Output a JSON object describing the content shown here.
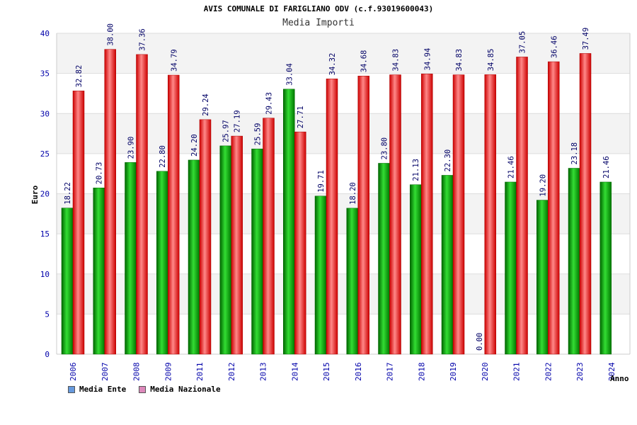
{
  "chart_data": {
    "type": "bar",
    "title": "AVIS COMUNALE DI FARIGLIANO ODV (c.f.93019600043)",
    "subtitle": "Media Importi",
    "xlabel": "Anno",
    "ylabel": "Euro",
    "ylim": [
      0,
      40
    ],
    "yticks": [
      0,
      5,
      10,
      15,
      20,
      25,
      30,
      35,
      40
    ],
    "grid": true,
    "legend_position": "bottom-left",
    "categories": [
      "2006",
      "2007",
      "2008",
      "2009",
      "2011",
      "2012",
      "2013",
      "2014",
      "2015",
      "2016",
      "2017",
      "2018",
      "2019",
      "2020",
      "2021",
      "2022",
      "2023",
      "2024"
    ],
    "series": [
      {
        "name": "Media Ente",
        "color": "#00aa00",
        "legend_color": "#6699dd",
        "values": [
          18.22,
          20.73,
          23.9,
          22.8,
          24.2,
          25.97,
          25.59,
          33.04,
          19.71,
          18.2,
          23.8,
          21.13,
          22.3,
          0.0,
          21.46,
          19.2,
          23.18,
          21.46
        ],
        "labels": [
          "18.22",
          "20.73",
          "23.90",
          "22.80",
          "24.20",
          "25.97",
          "25.59",
          "33.04",
          "19.71",
          "18.20",
          "23.80",
          "21.13",
          "22.30",
          "0.00",
          "21.46",
          "19.20",
          "23.18",
          "21.46"
        ]
      },
      {
        "name": "Media Nazionale",
        "color": "#ee1111",
        "legend_color": "#dd88bb",
        "values": [
          32.82,
          38.0,
          37.36,
          34.79,
          29.24,
          27.19,
          29.43,
          27.71,
          34.32,
          34.68,
          34.83,
          34.94,
          34.83,
          34.85,
          37.05,
          36.46,
          37.49,
          null
        ],
        "labels": [
          "32.82",
          "38.00",
          "37.36",
          "34.79",
          "29.24",
          "27.19",
          "29.43",
          "27.71",
          "34.32",
          "34.68",
          "34.83",
          "34.94",
          "34.83",
          "34.85",
          "37.05",
          "36.46",
          "37.49",
          ""
        ]
      }
    ]
  }
}
